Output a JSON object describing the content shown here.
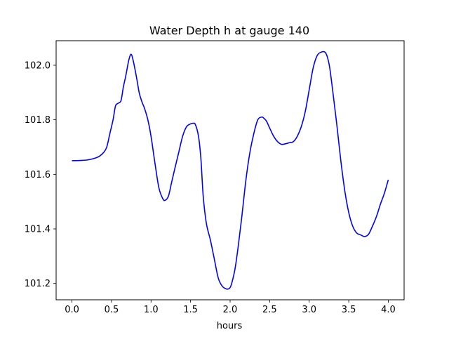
{
  "chart_data": {
    "type": "line",
    "title": "Water Depth h at gauge 140",
    "xlabel": "hours",
    "ylabel": "",
    "xlim": [
      -0.2,
      4.2
    ],
    "ylim": [
      101.14,
      102.09
    ],
    "xticks": [
      0.0,
      0.5,
      1.0,
      1.5,
      2.0,
      2.5,
      3.0,
      3.5,
      4.0
    ],
    "xtick_labels": [
      "0.0",
      "0.5",
      "1.0",
      "1.5",
      "2.0",
      "2.5",
      "3.0",
      "3.5",
      "4.0"
    ],
    "yticks": [
      101.2,
      101.4,
      101.6,
      101.8,
      102.0
    ],
    "ytick_labels": [
      "101.2",
      "101.4",
      "101.6",
      "101.8",
      "102.0"
    ],
    "grid": false,
    "legend": "none",
    "series": [
      {
        "color": "#0000ff",
        "x": [
          0.0,
          0.1,
          0.2,
          0.3,
          0.35,
          0.4,
          0.44,
          0.48,
          0.52,
          0.55,
          0.58,
          0.62,
          0.65,
          0.68,
          0.72,
          0.75,
          0.78,
          0.82,
          0.85,
          0.88,
          0.92,
          0.96,
          1.0,
          1.05,
          1.1,
          1.15,
          1.18,
          1.22,
          1.26,
          1.3,
          1.35,
          1.4,
          1.45,
          1.5,
          1.53,
          1.56,
          1.6,
          1.63,
          1.66,
          1.7,
          1.75,
          1.8,
          1.85,
          1.9,
          1.95,
          1.98,
          2.0,
          2.02,
          2.06,
          2.1,
          2.15,
          2.2,
          2.25,
          2.3,
          2.35,
          2.4,
          2.43,
          2.46,
          2.5,
          2.55,
          2.6,
          2.65,
          2.7,
          2.75,
          2.8,
          2.85,
          2.9,
          2.95,
          3.0,
          3.05,
          3.1,
          3.15,
          3.2,
          3.23,
          3.26,
          3.3,
          3.35,
          3.4,
          3.45,
          3.5,
          3.55,
          3.6,
          3.65,
          3.7,
          3.75,
          3.8,
          3.85,
          3.9,
          3.95,
          4.0
        ],
        "y": [
          101.65,
          101.651,
          101.653,
          101.66,
          101.667,
          101.68,
          101.7,
          101.75,
          101.8,
          101.85,
          101.86,
          101.87,
          101.92,
          101.96,
          102.02,
          102.04,
          102.01,
          101.95,
          101.9,
          101.87,
          101.84,
          101.8,
          101.74,
          101.64,
          101.55,
          101.51,
          101.505,
          101.52,
          101.57,
          101.62,
          101.68,
          101.74,
          101.775,
          101.785,
          101.787,
          101.783,
          101.74,
          101.66,
          101.52,
          101.42,
          101.36,
          101.29,
          101.22,
          101.19,
          101.18,
          101.18,
          101.185,
          101.2,
          101.25,
          101.33,
          101.45,
          101.58,
          101.68,
          101.75,
          101.8,
          101.81,
          101.805,
          101.795,
          101.77,
          101.74,
          101.72,
          101.71,
          101.712,
          101.716,
          101.72,
          101.74,
          101.775,
          101.83,
          101.91,
          101.99,
          102.035,
          102.048,
          102.048,
          102.03,
          101.99,
          101.9,
          101.78,
          101.65,
          101.54,
          101.46,
          101.41,
          101.385,
          101.378,
          101.372,
          101.38,
          101.41,
          101.445,
          101.49,
          101.53,
          101.58
        ]
      }
    ]
  }
}
